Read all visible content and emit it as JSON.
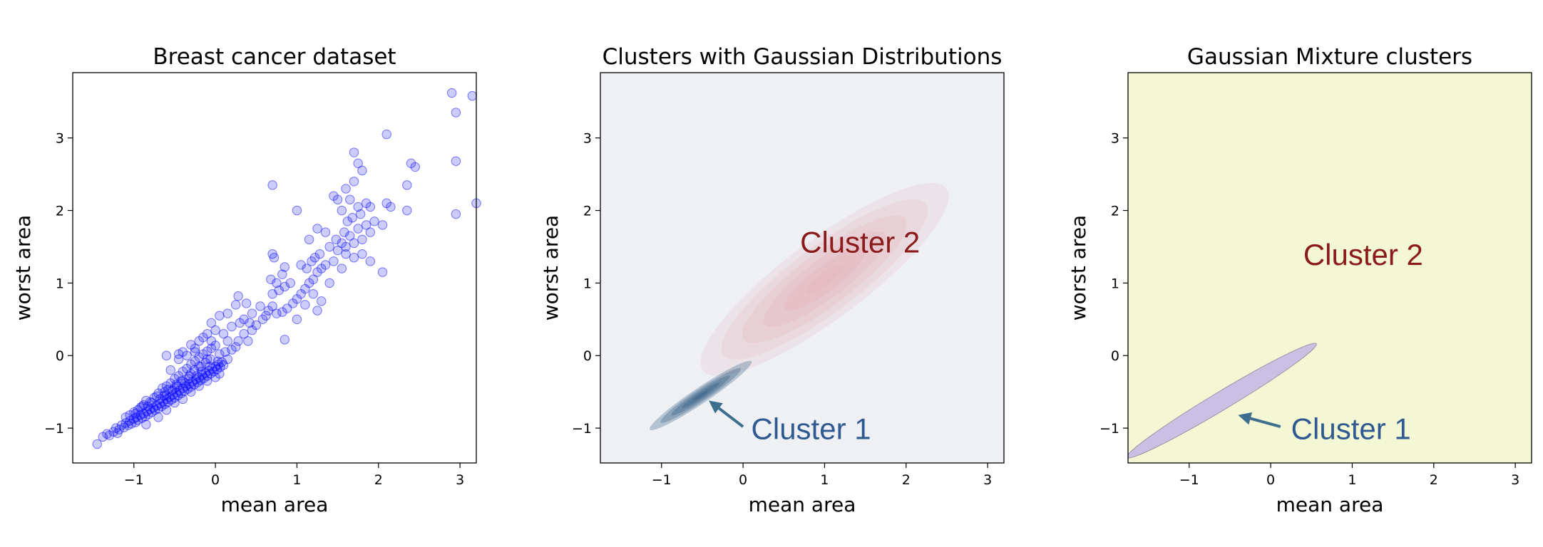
{
  "chart_data": [
    {
      "type": "scatter",
      "title": "Breast cancer dataset",
      "xlabel": "mean area",
      "ylabel": "worst area",
      "xlim": [
        -1.75,
        3.2
      ],
      "ylim": [
        -1.48,
        3.9
      ],
      "xticks": [
        -1,
        0,
        1,
        2,
        3
      ],
      "yticks": [
        -1,
        0,
        1,
        2,
        3
      ],
      "xtick_labels": [
        "−1",
        "0",
        "1",
        "2",
        "3"
      ],
      "ytick_labels": [
        "−1",
        "0",
        "1",
        "2",
        "3"
      ],
      "point_color": "#0000ff",
      "point_alpha": 0.2,
      "grid": false,
      "legend": "none",
      "points": [
        [
          -1.45,
          -1.22
        ],
        [
          -1.38,
          -1.12
        ],
        [
          -1.33,
          -1.08
        ],
        [
          -1.3,
          -1.1
        ],
        [
          -1.25,
          -1.05
        ],
        [
          -1.22,
          -1.0
        ],
        [
          -1.2,
          -1.07
        ],
        [
          -1.18,
          -1.02
        ],
        [
          -1.15,
          -0.96
        ],
        [
          -1.12,
          -0.99
        ],
        [
          -1.1,
          -0.93
        ],
        [
          -1.07,
          -0.96
        ],
        [
          -1.05,
          -0.9
        ],
        [
          -1.03,
          -0.94
        ],
        [
          -1.0,
          -0.87
        ],
        [
          -0.98,
          -0.92
        ],
        [
          -0.97,
          -0.85
        ],
        [
          -0.95,
          -0.89
        ],
        [
          -0.92,
          -0.82
        ],
        [
          -0.9,
          -0.86
        ],
        [
          -0.88,
          -0.8
        ],
        [
          -0.86,
          -0.84
        ],
        [
          -0.84,
          -0.77
        ],
        [
          -0.82,
          -0.81
        ],
        [
          -0.8,
          -0.74
        ],
        [
          -0.78,
          -0.78
        ],
        [
          -0.76,
          -0.72
        ],
        [
          -0.74,
          -0.75
        ],
        [
          -0.72,
          -0.69
        ],
        [
          -0.7,
          -0.73
        ],
        [
          -0.68,
          -0.66
        ],
        [
          -0.66,
          -0.7
        ],
        [
          -0.64,
          -0.63
        ],
        [
          -0.62,
          -0.67
        ],
        [
          -0.6,
          -0.6
        ],
        [
          -0.58,
          -0.64
        ],
        [
          -0.56,
          -0.57
        ],
        [
          -0.54,
          -0.61
        ],
        [
          -0.52,
          -0.54
        ],
        [
          -0.5,
          -0.58
        ],
        [
          -0.48,
          -0.51
        ],
        [
          -0.46,
          -0.55
        ],
        [
          -0.44,
          -0.48
        ],
        [
          -0.42,
          -0.52
        ],
        [
          -0.4,
          -0.45
        ],
        [
          -0.38,
          -0.49
        ],
        [
          -0.36,
          -0.42
        ],
        [
          -0.34,
          -0.46
        ],
        [
          -0.32,
          -0.39
        ],
        [
          -0.3,
          -0.43
        ],
        [
          -0.28,
          -0.36
        ],
        [
          -0.26,
          -0.4
        ],
        [
          -0.24,
          -0.33
        ],
        [
          -0.22,
          -0.37
        ],
        [
          -0.2,
          -0.3
        ],
        [
          -0.18,
          -0.34
        ],
        [
          -0.16,
          -0.27
        ],
        [
          -0.14,
          -0.31
        ],
        [
          -0.12,
          -0.24
        ],
        [
          -0.1,
          -0.28
        ],
        [
          -0.08,
          -0.21
        ],
        [
          -0.06,
          -0.25
        ],
        [
          -0.04,
          -0.18
        ],
        [
          -0.02,
          -0.22
        ],
        [
          0.0,
          -0.15
        ],
        [
          0.02,
          -0.19
        ],
        [
          0.04,
          -0.12
        ],
        [
          0.06,
          -0.16
        ],
        [
          0.08,
          -0.09
        ],
        [
          0.1,
          -0.13
        ],
        [
          -0.9,
          -0.7
        ],
        [
          -0.85,
          -0.62
        ],
        [
          -0.75,
          -0.58
        ],
        [
          -0.7,
          -0.52
        ],
        [
          -0.65,
          -0.45
        ],
        [
          -0.6,
          -0.42
        ],
        [
          -0.55,
          -0.38
        ],
        [
          -0.5,
          -0.32
        ],
        [
          -0.45,
          -0.28
        ],
        [
          -0.4,
          -0.22
        ],
        [
          -0.35,
          -0.18
        ],
        [
          -0.3,
          -0.12
        ],
        [
          -0.25,
          -0.08
        ],
        [
          -0.2,
          -0.02
        ],
        [
          -0.15,
          0.02
        ],
        [
          -0.1,
          0.06
        ],
        [
          -0.05,
          0.1
        ],
        [
          0.0,
          0.14
        ],
        [
          -1.0,
          -0.78
        ],
        [
          -0.95,
          -0.75
        ],
        [
          -0.88,
          -0.68
        ],
        [
          -0.8,
          -0.64
        ],
        [
          -0.72,
          -0.56
        ],
        [
          -0.62,
          -0.5
        ],
        [
          -0.58,
          -0.47
        ],
        [
          -0.48,
          -0.4
        ],
        [
          -0.42,
          -0.35
        ],
        [
          -0.32,
          -0.28
        ],
        [
          -0.26,
          -0.2
        ],
        [
          -0.18,
          -0.15
        ],
        [
          -0.12,
          -0.1
        ],
        [
          -0.06,
          -0.05
        ],
        [
          0.05,
          0.02
        ],
        [
          0.12,
          0.05
        ],
        [
          0.15,
          -0.05
        ],
        [
          0.2,
          0.08
        ],
        [
          0.25,
          0.12
        ],
        [
          0.28,
          0.2
        ],
        [
          -0.6,
          -0.75
        ],
        [
          -0.5,
          -0.65
        ],
        [
          -0.4,
          -0.6
        ],
        [
          -0.3,
          -0.5
        ],
        [
          -0.2,
          -0.42
        ],
        [
          -0.1,
          -0.35
        ],
        [
          0.0,
          -0.3
        ],
        [
          0.05,
          -0.25
        ],
        [
          -0.55,
          -0.2
        ],
        [
          -0.45,
          -0.05
        ],
        [
          -0.35,
          0.0
        ],
        [
          -0.25,
          0.05
        ],
        [
          -0.6,
          0.0
        ],
        [
          -0.25,
          0.1
        ],
        [
          -0.15,
          0.25
        ],
        [
          -0.05,
          0.2
        ],
        [
          0.1,
          0.3
        ],
        [
          0.15,
          0.2
        ],
        [
          -0.4,
          0.05
        ],
        [
          -0.3,
          0.15
        ],
        [
          -0.2,
          0.2
        ],
        [
          -0.1,
          0.3
        ],
        [
          0.0,
          0.35
        ],
        [
          0.2,
          0.4
        ],
        [
          0.3,
          0.45
        ],
        [
          0.35,
          0.3
        ],
        [
          0.4,
          0.2
        ],
        [
          0.45,
          0.35
        ],
        [
          -0.45,
          0.02
        ],
        [
          -0.05,
          0.45
        ],
        [
          0.05,
          0.55
        ],
        [
          0.15,
          0.58
        ],
        [
          0.25,
          0.7
        ],
        [
          0.35,
          0.5
        ],
        [
          0.45,
          0.58
        ],
        [
          0.55,
          0.68
        ],
        [
          0.62,
          0.55
        ],
        [
          0.28,
          0.82
        ],
        [
          0.38,
          0.72
        ],
        [
          0.42,
          0.45
        ],
        [
          0.5,
          0.42
        ],
        [
          0.58,
          0.5
        ],
        [
          0.65,
          0.62
        ],
        [
          0.7,
          0.68
        ],
        [
          0.75,
          0.58
        ],
        [
          0.82,
          0.6
        ],
        [
          0.88,
          0.65
        ],
        [
          0.95,
          0.72
        ],
        [
          0.7,
          0.85
        ],
        [
          0.78,
          0.9
        ],
        [
          0.85,
          0.95
        ],
        [
          0.92,
          1.0
        ],
        [
          0.68,
          1.05
        ],
        [
          0.75,
          1.0
        ],
        [
          0.82,
          1.12
        ],
        [
          0.7,
          1.4
        ],
        [
          0.72,
          1.35
        ],
        [
          0.85,
          1.22
        ],
        [
          1.0,
          0.78
        ],
        [
          1.05,
          0.85
        ],
        [
          1.1,
          0.92
        ],
        [
          1.15,
          1.0
        ],
        [
          1.2,
          1.05
        ],
        [
          1.05,
          1.25
        ],
        [
          1.12,
          1.2
        ],
        [
          1.18,
          1.3
        ],
        [
          1.25,
          1.15
        ],
        [
          1.3,
          1.2
        ],
        [
          1.35,
          1.25
        ],
        [
          1.22,
          1.35
        ],
        [
          1.28,
          1.4
        ],
        [
          1.45,
          1.3
        ],
        [
          1.4,
          1.5
        ],
        [
          1.5,
          1.45
        ],
        [
          1.55,
          1.55
        ],
        [
          1.48,
          1.6
        ],
        [
          1.6,
          1.5
        ],
        [
          1.65,
          1.65
        ],
        [
          1.58,
          1.7
        ],
        [
          1.7,
          1.55
        ],
        [
          1.75,
          1.75
        ],
        [
          1.62,
          1.85
        ],
        [
          1.68,
          1.9
        ],
        [
          1.8,
          1.6
        ],
        [
          1.85,
          1.8
        ],
        [
          1.78,
          1.95
        ],
        [
          1.9,
          1.7
        ],
        [
          1.95,
          1.85
        ],
        [
          1.55,
          2.0
        ],
        [
          1.65,
          2.15
        ],
        [
          1.75,
          2.05
        ],
        [
          1.85,
          2.1
        ],
        [
          1.45,
          2.2
        ],
        [
          1.6,
          2.3
        ],
        [
          1.7,
          2.4
        ],
        [
          1.8,
          2.55
        ],
        [
          1.25,
          1.75
        ],
        [
          1.35,
          1.7
        ],
        [
          1.15,
          1.6
        ],
        [
          1.0,
          2.0
        ],
        [
          0.7,
          2.35
        ],
        [
          1.5,
          2.15
        ],
        [
          1.7,
          2.8
        ],
        [
          1.75,
          2.65
        ],
        [
          2.1,
          3.05
        ],
        [
          1.6,
          1.4
        ],
        [
          1.4,
          1.0
        ],
        [
          1.2,
          0.85
        ],
        [
          1.3,
          0.75
        ],
        [
          1.25,
          0.62
        ],
        [
          0.85,
          0.22
        ],
        [
          1.0,
          0.5
        ],
        [
          1.1,
          0.7
        ],
        [
          1.55,
          1.2
        ],
        [
          1.7,
          1.35
        ],
        [
          1.8,
          1.4
        ],
        [
          2.05,
          1.15
        ],
        [
          2.05,
          1.8
        ],
        [
          2.15,
          2.05
        ],
        [
          2.35,
          2.0
        ],
        [
          2.35,
          2.35
        ],
        [
          2.4,
          2.65
        ],
        [
          2.45,
          2.6
        ],
        [
          2.1,
          2.1
        ],
        [
          1.9,
          2.05
        ],
        [
          2.9,
          3.62
        ],
        [
          2.95,
          3.35
        ],
        [
          3.15,
          3.58
        ],
        [
          2.95,
          2.68
        ],
        [
          2.95,
          1.95
        ],
        [
          3.2,
          2.1
        ],
        [
          1.9,
          1.3
        ],
        [
          -0.85,
          -0.95
        ],
        [
          -0.7,
          -0.85
        ],
        [
          -0.6,
          -0.55
        ],
        [
          -0.5,
          -0.45
        ],
        [
          -0.4,
          -0.35
        ],
        [
          -0.3,
          -0.25
        ],
        [
          -0.2,
          -0.15
        ],
        [
          -0.1,
          -0.05
        ],
        [
          -1.1,
          -0.85
        ],
        [
          -1.05,
          -0.82
        ],
        [
          -0.98,
          -0.8
        ],
        [
          -0.92,
          -0.72
        ],
        [
          -0.83,
          -0.7
        ],
        [
          -0.78,
          -0.65
        ],
        [
          -0.68,
          -0.6
        ],
        [
          -0.63,
          -0.55
        ],
        [
          -0.53,
          -0.48
        ],
        [
          -0.47,
          -0.42
        ],
        [
          -0.37,
          -0.38
        ],
        [
          -0.33,
          -0.32
        ],
        [
          -0.23,
          -0.28
        ],
        [
          -0.17,
          -0.22
        ],
        [
          -0.07,
          -0.15
        ],
        [
          0.03,
          -0.08
        ]
      ]
    },
    {
      "type": "contour",
      "title": "Clusters with Gaussian Distributions",
      "xlabel": "mean area",
      "ylabel": "worst area",
      "xlim": [
        -1.75,
        3.2
      ],
      "ylim": [
        -1.48,
        3.9
      ],
      "xticks": [
        -1,
        0,
        1,
        2,
        3
      ],
      "yticks": [
        -1,
        0,
        1,
        2,
        3
      ],
      "xtick_labels": [
        "−1",
        "0",
        "1",
        "2",
        "3"
      ],
      "ytick_labels": [
        "−1",
        "0",
        "1",
        "2",
        "3"
      ],
      "background_color": "#eef0f4",
      "clusters": [
        {
          "label": "Cluster 2",
          "color": "#8b1a1a",
          "fill": "#e0a0a8",
          "center": [
            1.0,
            1.05
          ],
          "angle_deg": 40,
          "sd_major": 0.75,
          "sd_minor": 0.2,
          "levels": 6
        },
        {
          "label": "Cluster 1",
          "color": "#2e5a91",
          "fill": "#1f4e7a",
          "center": [
            -0.52,
            -0.55
          ],
          "angle_deg": 37,
          "sd_major": 0.3,
          "sd_minor": 0.04,
          "levels": 5
        }
      ],
      "annotations": [
        {
          "text": "Cluster 2",
          "x": 0.7,
          "y": 1.42,
          "color": "#8b1a1a"
        },
        {
          "text": "Cluster 1",
          "x": 0.1,
          "y": -1.15,
          "color": "#2e5a91",
          "arrow_from": [
            0.0,
            -0.98
          ],
          "arrow_to": [
            -0.42,
            -0.62
          ]
        }
      ]
    },
    {
      "type": "ellipse",
      "title": "Gaussian Mixture clusters",
      "xlabel": "mean area",
      "ylabel": "worst area",
      "xlim": [
        -1.75,
        3.2
      ],
      "ylim": [
        -1.48,
        3.9
      ],
      "xticks": [
        -1,
        0,
        1,
        2,
        3
      ],
      "yticks": [
        -1,
        0,
        1,
        2,
        3
      ],
      "xtick_labels": [
        "−1",
        "0",
        "1",
        "2",
        "3"
      ],
      "ytick_labels": [
        "−1",
        "0",
        "1",
        "2",
        "3"
      ],
      "background_color": "#f4f7d4",
      "ellipse": {
        "center": [
          -0.6,
          -0.62
        ],
        "angle_deg": 34,
        "half_major": 1.4,
        "half_minor": 0.12,
        "fill": "#c9c1e3",
        "edge": "#9a92a8"
      },
      "annotations": [
        {
          "text": "Cluster 2",
          "x": 0.4,
          "y": 1.25,
          "color": "#8b1a1a"
        },
        {
          "text": "Cluster 1",
          "x": 0.25,
          "y": -1.15,
          "color": "#2e5a91",
          "arrow_from": [
            0.12,
            -0.98
          ],
          "arrow_to": [
            -0.4,
            -0.82
          ]
        }
      ]
    }
  ]
}
